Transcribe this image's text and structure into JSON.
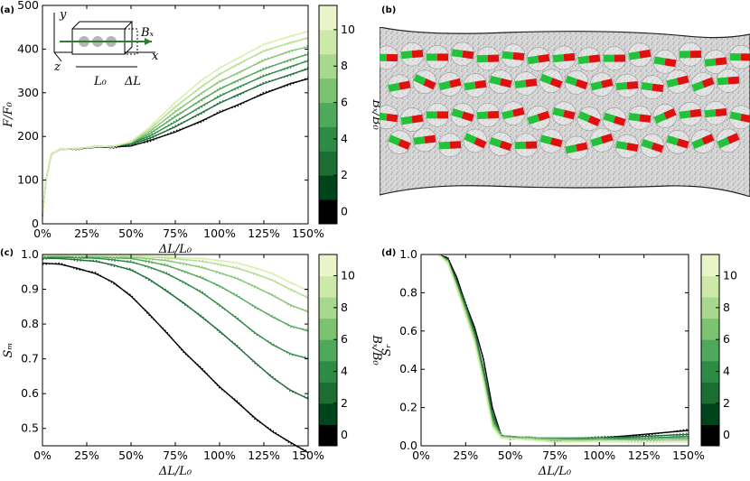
{
  "colors": {
    "series": [
      "#000000",
      "#1f6b3a",
      "#2f8a48",
      "#53a85b",
      "#86c473",
      "#b4dd8f",
      "#d8eeae"
    ],
    "colorbar": [
      "#000000",
      "#00441b",
      "#1b6d32",
      "#2e8b45",
      "#4ea95b",
      "#7bc36f",
      "#a7d88d",
      "#cde9aa",
      "#e9f5c8"
    ]
  },
  "panels": [
    {
      "letter": "(a)",
      "xlabel": "ΔL/L₀",
      "ylabel": "F/F₀",
      "cb_label": "Bₓ/B₀",
      "cb_ticks": [
        "0",
        "2",
        "4",
        "6",
        "8",
        "10"
      ],
      "inset": {
        "y": "y",
        "z": "z",
        "x": "x",
        "bx": "Bₓ",
        "l0": "L₀",
        "dl": "ΔL"
      }
    },
    {
      "letter": "(b)",
      "image": "molecular-dynamics snapshot of elongated sample with red-green rod-shaped particles"
    },
    {
      "letter": "(c)",
      "xlabel": "ΔL/L₀",
      "ylabel": "Sₘ",
      "cb_label": "Bₓ/B₀",
      "cb_ticks": [
        "0",
        "2",
        "4",
        "6",
        "8",
        "10"
      ]
    },
    {
      "letter": "(d)",
      "xlabel": "ΔL/L₀",
      "ylabel": "Sᵣ",
      "cb_label": "Bₓ/B₀",
      "cb_ticks": [
        "0",
        "2",
        "4",
        "6",
        "8",
        "10"
      ]
    }
  ],
  "chart_data": [
    {
      "type": "line",
      "x": [
        0,
        0.02,
        0.05,
        0.1,
        0.2,
        0.3,
        0.4,
        0.5,
        0.6,
        0.75,
        0.9,
        1.0,
        1.1,
        1.25,
        1.4,
        1.5
      ],
      "xticks": [
        "0%",
        "25%",
        "50%",
        "75%",
        "100%",
        "125%",
        "150%"
      ],
      "xlim": [
        0,
        1.5
      ],
      "ylim": [
        0,
        500
      ],
      "yticks": [
        "0",
        "100",
        "200",
        "300",
        "400",
        "500"
      ],
      "series": [
        {
          "bx": 0,
          "values": [
            20,
            100,
            160,
            170,
            172,
            175,
            176,
            178,
            190,
            210,
            236,
            255,
            272,
            298,
            321,
            332
          ]
        },
        {
          "bx": 2,
          "values": [
            20,
            100,
            160,
            170,
            173,
            176,
            178,
            182,
            195,
            222,
            255,
            276,
            295,
            321,
            342,
            355
          ]
        },
        {
          "bx": 4,
          "values": [
            20,
            100,
            160,
            170,
            173,
            176,
            178,
            184,
            200,
            233,
            270,
            292,
            312,
            338,
            360,
            373
          ]
        },
        {
          "bx": 6,
          "values": [
            20,
            100,
            160,
            170,
            173,
            176,
            178,
            185,
            205,
            245,
            285,
            308,
            328,
            354,
            376,
            388
          ]
        },
        {
          "bx": 8,
          "values": [
            20,
            100,
            160,
            170,
            173,
            176,
            178,
            186,
            210,
            256,
            300,
            325,
            345,
            374,
            396,
            405
          ]
        },
        {
          "bx": 10,
          "values": [
            20,
            100,
            160,
            170,
            173,
            176,
            178,
            187,
            215,
            267,
            315,
            342,
            365,
            395,
            415,
            425
          ]
        },
        {
          "bx": 11,
          "values": [
            20,
            100,
            160,
            170,
            173,
            176,
            178,
            188,
            220,
            277,
            330,
            356,
            379,
            410,
            430,
            440
          ]
        }
      ]
    },
    {
      "type": "line",
      "x": [
        0,
        0.1,
        0.2,
        0.3,
        0.4,
        0.5,
        0.6,
        0.7,
        0.8,
        0.9,
        1.0,
        1.1,
        1.2,
        1.3,
        1.4,
        1.5
      ],
      "xticks": [
        "0%",
        "25%",
        "50%",
        "75%",
        "100%",
        "125%",
        "150%"
      ],
      "xlim": [
        0,
        1.5
      ],
      "ylim": [
        0.45,
        1.0
      ],
      "yticks": [
        "0.5",
        "0.6",
        "0.7",
        "0.8",
        "0.9",
        "1.0"
      ],
      "series": [
        {
          "bx": 0,
          "values": [
            0.975,
            0.972,
            0.96,
            0.945,
            0.92,
            0.88,
            0.83,
            0.775,
            0.72,
            0.67,
            0.62,
            0.575,
            0.53,
            0.49,
            0.46,
            0.43
          ]
        },
        {
          "bx": 2,
          "values": [
            0.99,
            0.988,
            0.985,
            0.98,
            0.97,
            0.955,
            0.93,
            0.895,
            0.86,
            0.82,
            0.78,
            0.735,
            0.69,
            0.645,
            0.61,
            0.585
          ]
        },
        {
          "bx": 4,
          "values": [
            0.993,
            0.992,
            0.991,
            0.989,
            0.985,
            0.978,
            0.965,
            0.945,
            0.92,
            0.89,
            0.855,
            0.815,
            0.775,
            0.74,
            0.715,
            0.7
          ]
        },
        {
          "bx": 6,
          "values": [
            0.995,
            0.995,
            0.994,
            0.993,
            0.991,
            0.988,
            0.98,
            0.968,
            0.952,
            0.932,
            0.91,
            0.88,
            0.85,
            0.82,
            0.795,
            0.78
          ]
        },
        {
          "bx": 8,
          "values": [
            0.996,
            0.996,
            0.996,
            0.995,
            0.994,
            0.992,
            0.988,
            0.982,
            0.974,
            0.962,
            0.948,
            0.93,
            0.908,
            0.882,
            0.855,
            0.835
          ]
        },
        {
          "bx": 10,
          "values": [
            0.997,
            0.997,
            0.997,
            0.996,
            0.996,
            0.995,
            0.993,
            0.99,
            0.986,
            0.98,
            0.972,
            0.96,
            0.945,
            0.925,
            0.9,
            0.875
          ]
        },
        {
          "bx": 11,
          "values": [
            0.998,
            0.998,
            0.998,
            0.997,
            0.997,
            0.996,
            0.995,
            0.993,
            0.991,
            0.988,
            0.983,
            0.975,
            0.962,
            0.944,
            0.92,
            0.895
          ]
        }
      ]
    },
    {
      "type": "line",
      "x": [
        0.1,
        0.15,
        0.2,
        0.25,
        0.3,
        0.35,
        0.4,
        0.45,
        0.5,
        0.6,
        0.75,
        1.0,
        1.25,
        1.5
      ],
      "xticks": [
        "0%",
        "25%",
        "50%",
        "75%",
        "100%",
        "125%",
        "150%"
      ],
      "xlim": [
        0,
        1.5
      ],
      "ylim": [
        0,
        1.0
      ],
      "yticks": [
        "0.0",
        "0.2",
        "0.4",
        "0.6",
        "0.8",
        "1.0"
      ],
      "series": [
        {
          "bx": 0,
          "values": [
            1.0,
            0.98,
            0.88,
            0.74,
            0.62,
            0.45,
            0.2,
            0.05,
            0.04,
            0.04,
            0.03,
            0.04,
            0.06,
            0.08
          ]
        },
        {
          "bx": 2,
          "values": [
            1.0,
            0.97,
            0.86,
            0.73,
            0.6,
            0.4,
            0.17,
            0.05,
            0.05,
            0.04,
            0.04,
            0.04,
            0.05,
            0.06
          ]
        },
        {
          "bx": 4,
          "values": [
            1.0,
            0.97,
            0.85,
            0.72,
            0.58,
            0.38,
            0.15,
            0.05,
            0.05,
            0.04,
            0.04,
            0.04,
            0.04,
            0.05
          ]
        },
        {
          "bx": 6,
          "values": [
            1.0,
            0.96,
            0.84,
            0.71,
            0.57,
            0.36,
            0.13,
            0.05,
            0.05,
            0.04,
            0.04,
            0.03,
            0.04,
            0.04
          ]
        },
        {
          "bx": 8,
          "values": [
            1.0,
            0.96,
            0.83,
            0.7,
            0.56,
            0.35,
            0.12,
            0.05,
            0.04,
            0.04,
            0.03,
            0.03,
            0.03,
            0.03
          ]
        },
        {
          "bx": 10,
          "values": [
            1.0,
            0.96,
            0.83,
            0.69,
            0.55,
            0.34,
            0.11,
            0.04,
            0.04,
            0.03,
            0.03,
            0.02,
            0.02,
            0.02
          ]
        },
        {
          "bx": 11,
          "values": [
            1.0,
            0.95,
            0.82,
            0.68,
            0.54,
            0.33,
            0.1,
            0.04,
            0.04,
            0.03,
            0.02,
            0.02,
            0.02,
            0.02
          ]
        }
      ]
    }
  ]
}
